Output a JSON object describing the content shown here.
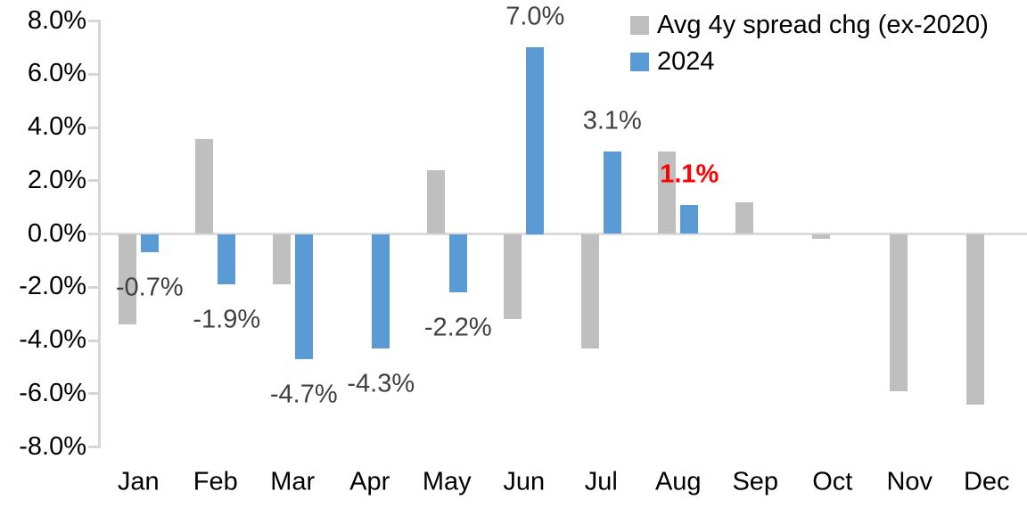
{
  "chart_data": {
    "type": "bar",
    "title": "",
    "categories": [
      "Jan",
      "Feb",
      "Mar",
      "Apr",
      "May",
      "Jun",
      "Jul",
      "Aug",
      "Sep",
      "Oct",
      "Nov",
      "Dec"
    ],
    "series": [
      {
        "name": "Avg 4y spread chg (ex-2020)",
        "color": "#bfbfbf",
        "values": [
          -3.4,
          3.55,
          -1.9,
          0.0,
          2.4,
          -3.2,
          -4.3,
          3.1,
          1.2,
          -0.2,
          -5.9,
          -6.4
        ]
      },
      {
        "name": "2024",
        "color": "#5b9bd5",
        "values": [
          -0.7,
          -1.9,
          -4.7,
          -4.3,
          -2.2,
          7.0,
          3.1,
          1.1,
          null,
          null,
          null,
          null
        ]
      }
    ],
    "data_labels": [
      {
        "month_index": 0,
        "text": "-0.7%",
        "color": "#404040",
        "bold": false
      },
      {
        "month_index": 1,
        "text": "-1.9%",
        "color": "#404040",
        "bold": false
      },
      {
        "month_index": 2,
        "text": "-4.7%",
        "color": "#404040",
        "bold": false
      },
      {
        "month_index": 3,
        "text": "-4.3%",
        "color": "#404040",
        "bold": false
      },
      {
        "month_index": 4,
        "text": "-2.2%",
        "color": "#404040",
        "bold": false
      },
      {
        "month_index": 5,
        "text": "7.0%",
        "color": "#404040",
        "bold": false
      },
      {
        "month_index": 6,
        "text": "3.1%",
        "color": "#404040",
        "bold": false
      },
      {
        "month_index": 7,
        "text": "1.1%",
        "color": "#ff0000",
        "bold": true
      }
    ],
    "y_axis": {
      "min": -8,
      "max": 8,
      "step": 2,
      "ticks": [
        {
          "label": "8.0%",
          "value": 8
        },
        {
          "label": "6.0%",
          "value": 6
        },
        {
          "label": "4.0%",
          "value": 4
        },
        {
          "label": "2.0%",
          "value": 2
        },
        {
          "label": "0.0%",
          "value": 0
        },
        {
          "label": "-2.0%",
          "value": -2
        },
        {
          "label": "-4.0%",
          "value": -4
        },
        {
          "label": "-6.0%",
          "value": -6
        },
        {
          "label": "-8.0%",
          "value": -8
        }
      ]
    },
    "legend_position": "top-right",
    "grid": "zero-line-only"
  }
}
